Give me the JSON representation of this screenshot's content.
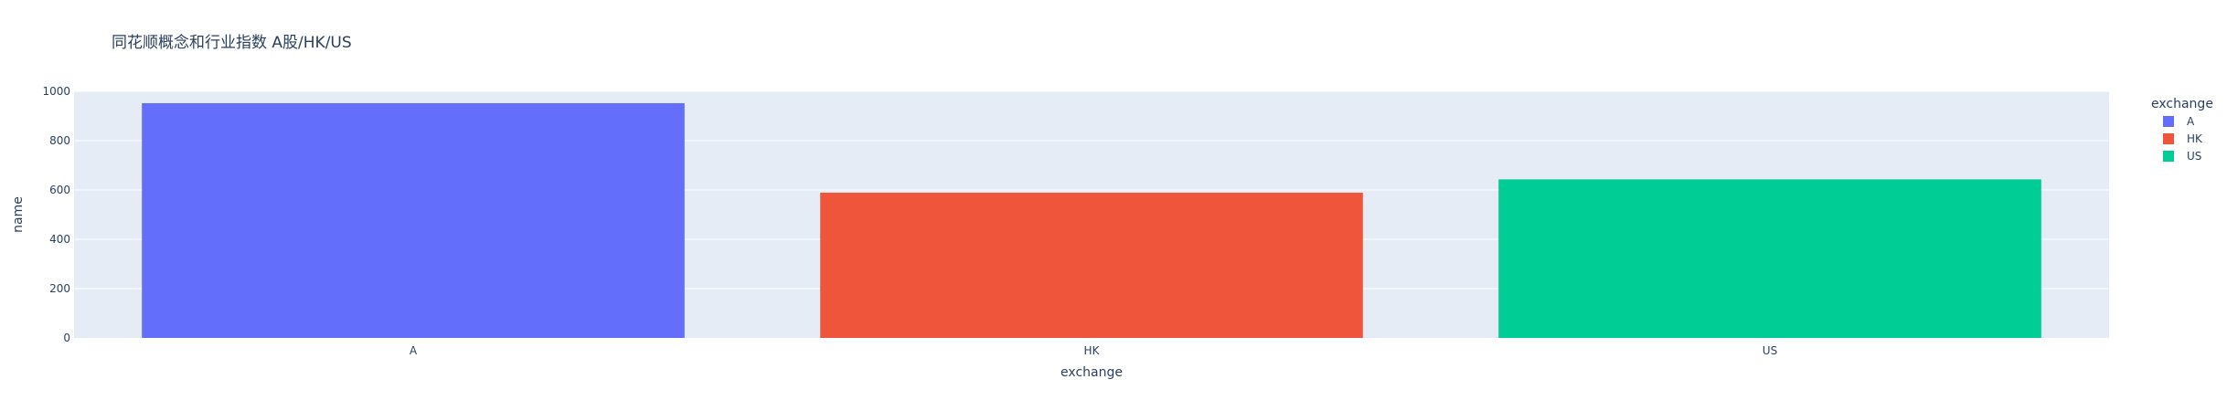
{
  "chart_data": {
    "type": "bar",
    "title": "同花顺概念和行业指数 A股/HK/US",
    "xlabel": "exchange",
    "ylabel": "name",
    "categories": [
      "A",
      "HK",
      "US"
    ],
    "series": [
      {
        "name": "A",
        "values": [
          952,
          null,
          null
        ],
        "color": "#636efa"
      },
      {
        "name": "HK",
        "values": [
          null,
          589,
          null
        ],
        "color": "#ef553b"
      },
      {
        "name": "US",
        "values": [
          null,
          null,
          643
        ],
        "color": "#00cc96"
      }
    ],
    "ylim": [
      0,
      1000
    ],
    "yticks": [
      0,
      200,
      400,
      600,
      800,
      1000
    ],
    "grid": true,
    "plot_background": "#e5ecf6",
    "legend": {
      "title": "exchange",
      "position": "right"
    }
  }
}
